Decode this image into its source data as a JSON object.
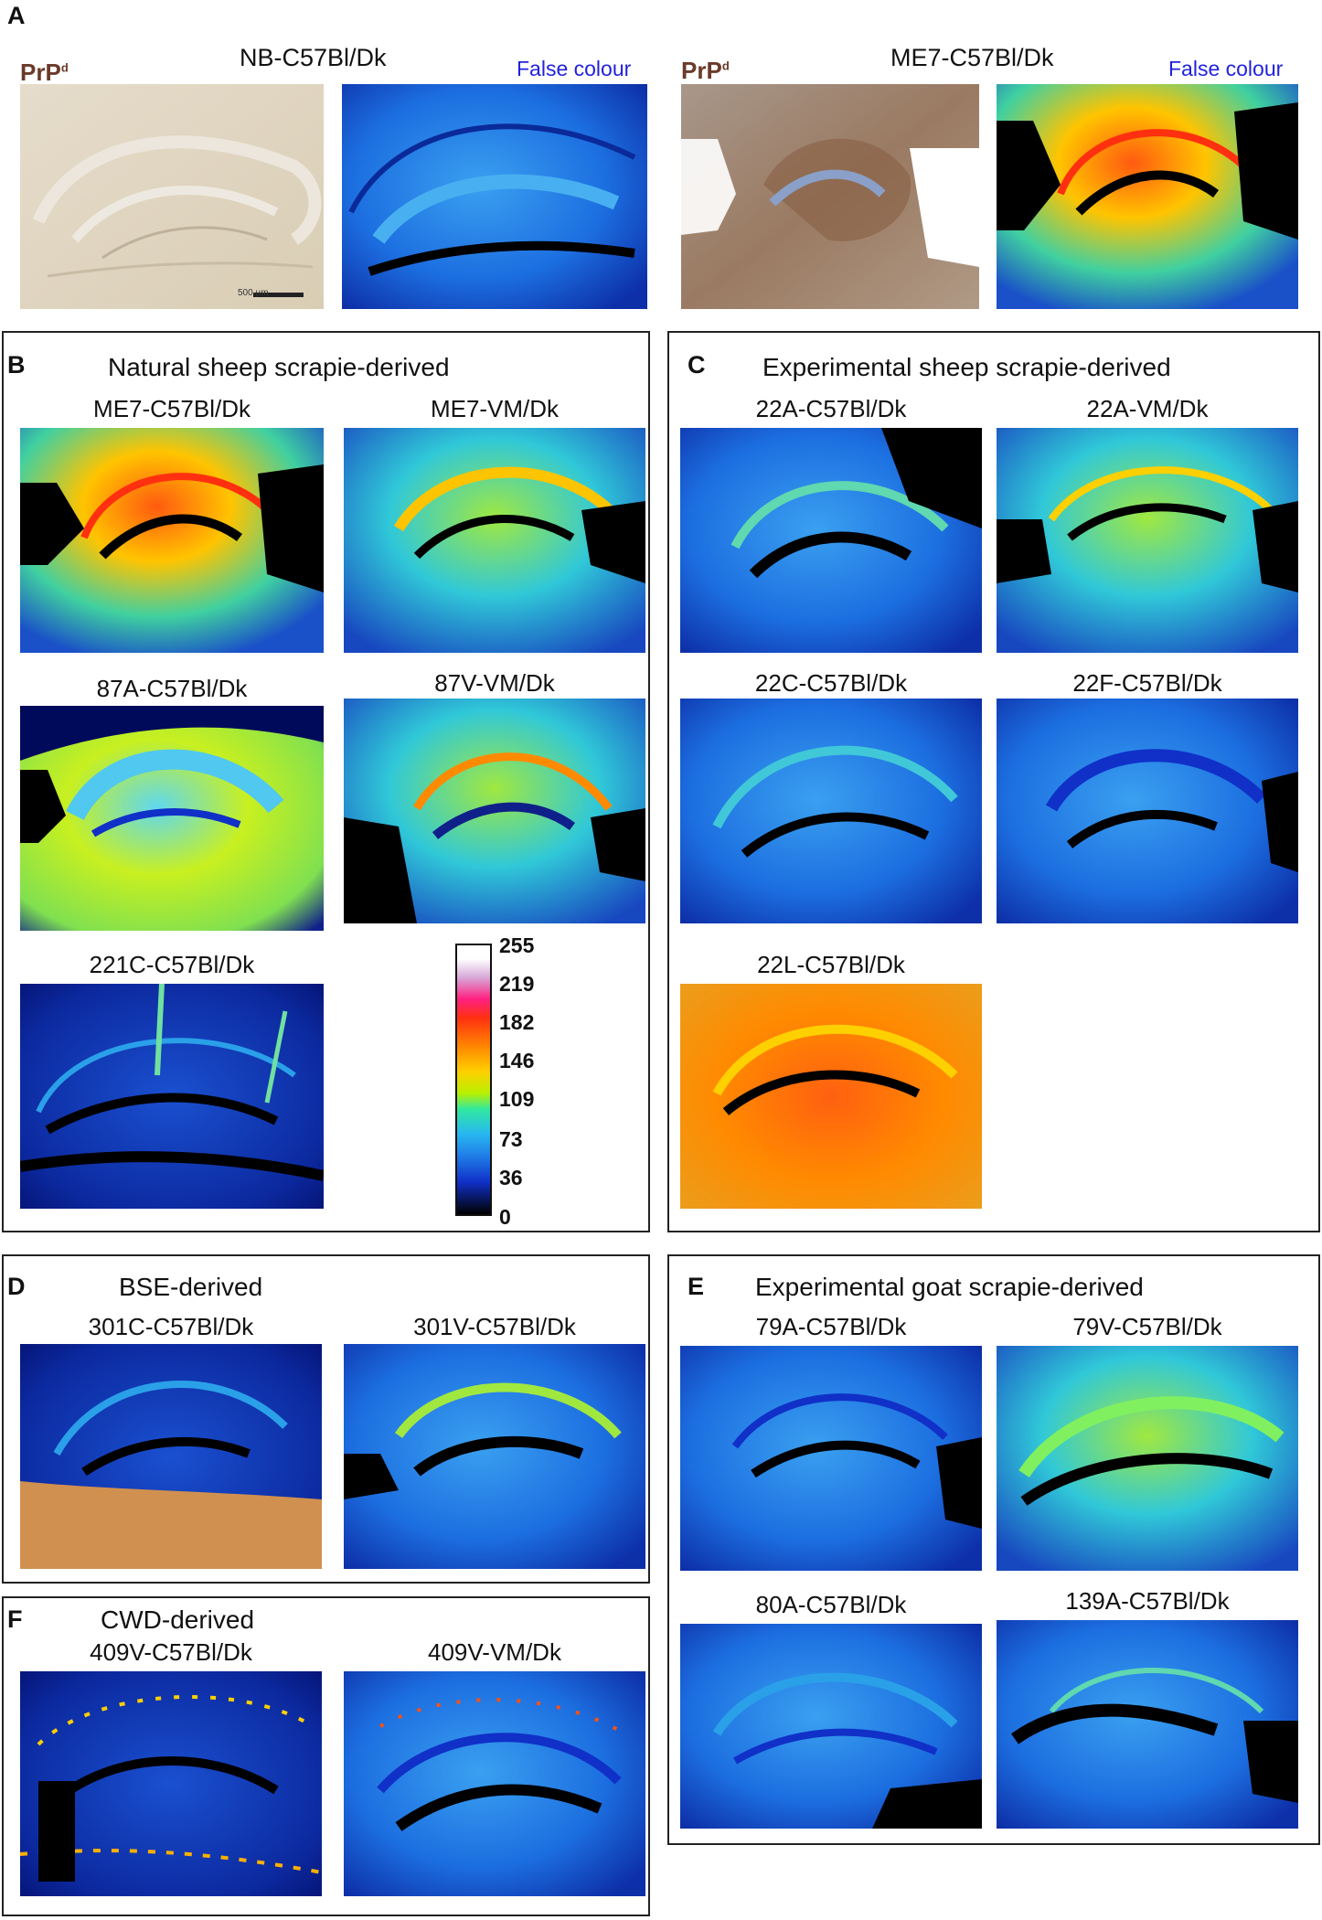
{
  "panelA": {
    "letter": "A",
    "left_title": "NB-C57Bl/Dk",
    "right_title": "ME7-C57Bl/Dk",
    "prpd_label": "PrP",
    "prpd_sup": "d",
    "false_colour_label": "False colour",
    "scale_bar_label": "500 µm"
  },
  "panelB": {
    "letter": "B",
    "title": "Natural sheep scrapie-derived",
    "images": [
      "ME7-C57Bl/Dk",
      "ME7-VM/Dk",
      "87A-C57Bl/Dk",
      "87V-VM/Dk",
      "221C-C57Bl/Dk"
    ]
  },
  "panelC": {
    "letter": "C",
    "title": "Experimental sheep scrapie-derived",
    "images": [
      "22A-C57Bl/Dk",
      "22A-VM/Dk",
      "22C-C57Bl/Dk",
      "22F-C57Bl/Dk",
      "22L-C57Bl/Dk"
    ]
  },
  "panelD": {
    "letter": "D",
    "title": "BSE-derived",
    "images": [
      "301C-C57Bl/Dk",
      "301V-C57Bl/Dk"
    ]
  },
  "panelE": {
    "letter": "E",
    "title": "Experimental goat scrapie-derived",
    "images": [
      "79A-C57Bl/Dk",
      "79V-C57Bl/Dk",
      "80A-C57Bl/Dk",
      "139A-C57Bl/Dk"
    ]
  },
  "panelF": {
    "letter": "F",
    "title": "CWD-derived",
    "images": [
      "409V-C57Bl/Dk",
      "409V-VM/Dk"
    ]
  },
  "colorbar": {
    "ticks": [
      "255",
      "219",
      "182",
      "146",
      "109",
      "73",
      "36",
      "0"
    ],
    "colors": [
      "#ffffff",
      "#d8a8d8",
      "#ff2080",
      "#ff3010",
      "#ff8a00",
      "#ffd000",
      "#b8f000",
      "#30e8a0",
      "#28b8f0",
      "#2080e8",
      "#1030c8",
      "#000000"
    ]
  },
  "colors": {
    "false_colour_text": "#2222dd",
    "prpd_text": "#6b3a2a"
  }
}
